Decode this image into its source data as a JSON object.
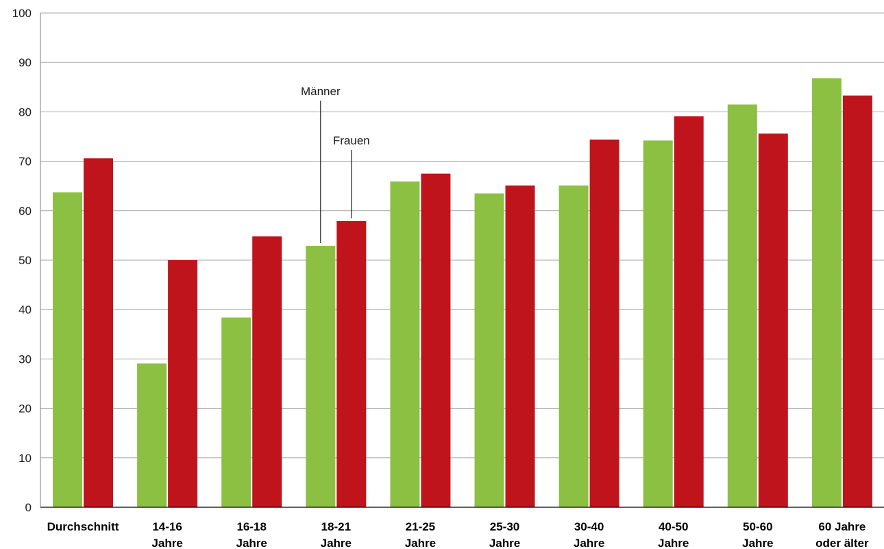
{
  "chart_data": {
    "type": "bar",
    "categories": [
      [
        "Durchschnitt"
      ],
      [
        "14-16",
        "Jahre"
      ],
      [
        "16-18",
        "Jahre"
      ],
      [
        "18-21",
        "Jahre"
      ],
      [
        "21-25",
        "Jahre"
      ],
      [
        "25-30",
        "Jahre"
      ],
      [
        "30-40",
        "Jahre"
      ],
      [
        "40-50",
        "Jahre"
      ],
      [
        "50-60",
        "Jahre"
      ],
      [
        "60 Jahre",
        "oder älter"
      ]
    ],
    "series": [
      {
        "name": "Männer",
        "color": "#8cc043",
        "values": [
          63.7,
          29.1,
          38.4,
          52.9,
          65.9,
          63.5,
          65.1,
          74.2,
          81.5,
          86.8
        ]
      },
      {
        "name": "Frauen",
        "color": "#c0141d",
        "values": [
          70.6,
          50.0,
          54.8,
          57.9,
          67.5,
          65.1,
          74.4,
          79.1,
          75.6,
          83.3
        ]
      }
    ],
    "ylim": [
      0,
      100
    ],
    "yticks": [
      0,
      10,
      20,
      30,
      40,
      50,
      60,
      70,
      80,
      90,
      100
    ],
    "grid": true,
    "annotations": [
      {
        "series_index": 0,
        "category_index": 3,
        "text": "Männer"
      },
      {
        "series_index": 1,
        "category_index": 3,
        "text": "Frauen"
      }
    ]
  }
}
